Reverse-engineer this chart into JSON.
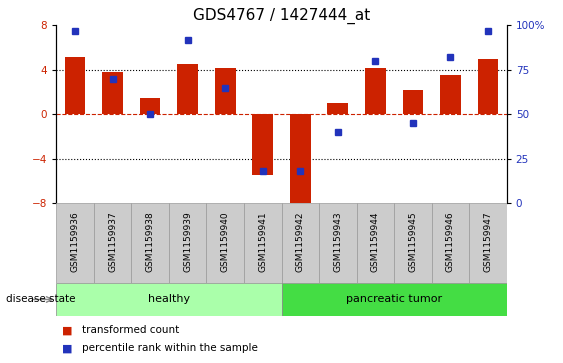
{
  "title": "GDS4767 / 1427444_at",
  "samples": [
    "GSM1159936",
    "GSM1159937",
    "GSM1159938",
    "GSM1159939",
    "GSM1159940",
    "GSM1159941",
    "GSM1159942",
    "GSM1159943",
    "GSM1159944",
    "GSM1159945",
    "GSM1159946",
    "GSM1159947"
  ],
  "bar_values": [
    5.2,
    3.8,
    1.5,
    4.5,
    4.2,
    -5.5,
    -8.8,
    1.0,
    4.2,
    2.2,
    3.5,
    5.0
  ],
  "percentile_values": [
    97,
    70,
    50,
    92,
    65,
    18,
    18,
    40,
    80,
    45,
    82,
    97
  ],
  "bar_color": "#CC2200",
  "dot_color": "#2233BB",
  "ylim_left": [
    -8,
    8
  ],
  "ylim_right": [
    0,
    100
  ],
  "yticks_left": [
    -8,
    -4,
    0,
    4,
    8
  ],
  "yticks_right": [
    0,
    25,
    50,
    75,
    100
  ],
  "right_tick_labels": [
    "0",
    "25",
    "50",
    "75",
    "100%"
  ],
  "healthy_label": "healthy",
  "tumor_label": "pancreatic tumor",
  "healthy_color": "#AAFFAA",
  "tumor_color": "#44DD44",
  "group_label": "disease state",
  "legend_bar": "transformed count",
  "legend_dot": "percentile rank within the sample",
  "hline_dotted": [
    -4,
    4
  ],
  "hline_dashed_color": "#CC2200",
  "bg_color": "#FFFFFF",
  "tick_label_area_color": "#CCCCCC",
  "title_fontsize": 11,
  "bar_width": 0.55
}
